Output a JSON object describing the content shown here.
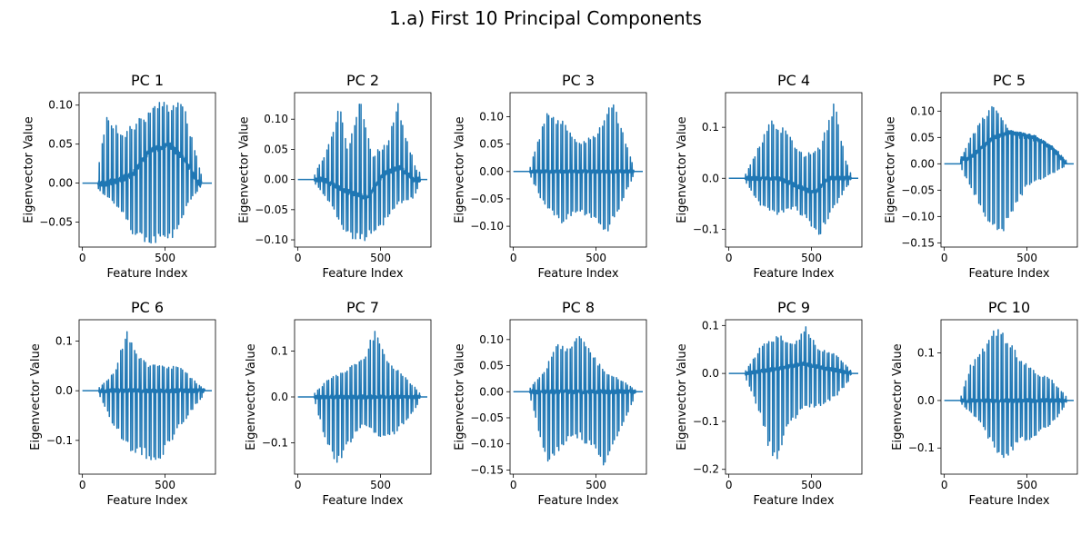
{
  "figure": {
    "title": "1.a) First 10 Principal Components",
    "line_color": "#1f77b4"
  },
  "chart_data": [
    {
      "type": "line",
      "title": "PC 1",
      "xlabel": "Feature Index",
      "ylabel": "Eigenvector Value",
      "xlim": [
        -20,
        805
      ],
      "ylim": [
        -0.082,
        0.116
      ],
      "xticks": [
        0,
        500
      ],
      "yticks": [
        -0.05,
        0,
        0.05,
        0.1
      ],
      "ytick_labels": [
        "−0.05",
        "0.00",
        "0.05",
        "0.10"
      ],
      "signal": {
        "active": [
          95,
          720
        ],
        "pos_max": 0.108,
        "neg_min": -0.078,
        "pos_profile": [
          [
            95,
            0.2
          ],
          [
            150,
            0.8
          ],
          [
            250,
            0.6
          ],
          [
            350,
            0.8
          ],
          [
            450,
            0.95
          ],
          [
            550,
            1.0
          ],
          [
            620,
            0.9
          ],
          [
            680,
            0.4
          ],
          [
            720,
            0.1
          ]
        ],
        "neg_profile": [
          [
            95,
            0.1
          ],
          [
            250,
            0.5
          ],
          [
            300,
            0.9
          ],
          [
            420,
            1.0
          ],
          [
            550,
            0.9
          ],
          [
            650,
            0.3
          ],
          [
            720,
            0.05
          ]
        ],
        "base_profile": [
          [
            150,
            0
          ],
          [
            300,
            0.01
          ],
          [
            400,
            0.04
          ],
          [
            520,
            0.05
          ],
          [
            620,
            0.03
          ],
          [
            700,
            0
          ]
        ],
        "noise": 0.004,
        "seed": 11
      }
    },
    {
      "type": "line",
      "title": "PC 2",
      "xlabel": "Feature Index",
      "ylabel": "Eigenvector Value",
      "xlim": [
        -20,
        805
      ],
      "ylim": [
        -0.112,
        0.144
      ],
      "xticks": [
        0,
        500
      ],
      "yticks": [
        -0.1,
        -0.05,
        0,
        0.05,
        0.1
      ],
      "ytick_labels": [
        "−0.10",
        "−0.05",
        "0.00",
        "0.05",
        "0.10"
      ],
      "signal": {
        "active": [
          100,
          740
        ],
        "pos_max": 0.134,
        "neg_min": -0.104,
        "pos_profile": [
          [
            100,
            0.05
          ],
          [
            200,
            0.5
          ],
          [
            250,
            0.95
          ],
          [
            300,
            0.4
          ],
          [
            380,
            1.0
          ],
          [
            450,
            0.3
          ],
          [
            550,
            0.5
          ],
          [
            600,
            1.0
          ],
          [
            650,
            0.6
          ],
          [
            720,
            0.1
          ]
        ],
        "neg_profile": [
          [
            100,
            0.05
          ],
          [
            200,
            0.4
          ],
          [
            300,
            0.95
          ],
          [
            400,
            1.0
          ],
          [
            500,
            0.8
          ],
          [
            600,
            0.4
          ],
          [
            700,
            0.3
          ],
          [
            740,
            0.05
          ]
        ],
        "base_profile": [
          [
            150,
            0
          ],
          [
            300,
            -0.02
          ],
          [
            420,
            -0.03
          ],
          [
            520,
            0.01
          ],
          [
            620,
            0.02
          ],
          [
            700,
            0
          ]
        ],
        "noise": 0.004,
        "seed": 23
      }
    },
    {
      "type": "line",
      "title": "PC 3",
      "xlabel": "Feature Index",
      "ylabel": "Eigenvector Value",
      "xlim": [
        -20,
        805
      ],
      "ylim": [
        -0.138,
        0.144
      ],
      "xticks": [
        0,
        500
      ],
      "yticks": [
        -0.1,
        -0.05,
        0,
        0.05,
        0.1
      ],
      "ytick_labels": [
        "−0.10",
        "−0.05",
        "0.00",
        "0.05",
        "0.10"
      ],
      "signal": {
        "active": [
          100,
          730
        ],
        "pos_max": 0.134,
        "neg_min": -0.122,
        "pos_profile": [
          [
            100,
            0.05
          ],
          [
            200,
            0.8
          ],
          [
            300,
            0.7
          ],
          [
            400,
            0.4
          ],
          [
            500,
            0.5
          ],
          [
            600,
            1.0
          ],
          [
            680,
            0.4
          ],
          [
            730,
            0.05
          ]
        ],
        "neg_profile": [
          [
            100,
            0.05
          ],
          [
            200,
            0.6
          ],
          [
            300,
            0.8
          ],
          [
            400,
            0.6
          ],
          [
            500,
            0.8
          ],
          [
            560,
            1.0
          ],
          [
            650,
            0.5
          ],
          [
            730,
            0.05
          ]
        ],
        "base_profile": [
          [
            100,
            0
          ],
          [
            730,
            0
          ]
        ],
        "noise": 0.003,
        "seed": 37
      }
    },
    {
      "type": "line",
      "title": "PC 4",
      "xlabel": "Feature Index",
      "ylabel": "Eigenvector Value",
      "xlim": [
        -20,
        805
      ],
      "ylim": [
        -0.135,
        0.168
      ],
      "xticks": [
        0,
        500
      ],
      "yticks": [
        -0.1,
        0,
        0.1
      ],
      "ytick_labels": [
        "−0.1",
        "0.0",
        "0.1"
      ],
      "signal": {
        "active": [
          100,
          740
        ],
        "pos_max": 0.153,
        "neg_min": -0.12,
        "pos_profile": [
          [
            100,
            0.05
          ],
          [
            200,
            0.5
          ],
          [
            250,
            0.8
          ],
          [
            350,
            0.6
          ],
          [
            450,
            0.3
          ],
          [
            550,
            0.4
          ],
          [
            640,
            1.0
          ],
          [
            700,
            0.3
          ],
          [
            740,
            0.05
          ]
        ],
        "neg_profile": [
          [
            100,
            0.05
          ],
          [
            200,
            0.5
          ],
          [
            300,
            0.6
          ],
          [
            400,
            0.5
          ],
          [
            500,
            0.8
          ],
          [
            540,
            1.0
          ],
          [
            620,
            0.6
          ],
          [
            700,
            0.2
          ],
          [
            740,
            0.05
          ]
        ],
        "base_profile": [
          [
            300,
            0
          ],
          [
            450,
            -0.02
          ],
          [
            520,
            -0.03
          ],
          [
            600,
            0
          ]
        ],
        "noise": 0.004,
        "seed": 41
      }
    },
    {
      "type": "line",
      "title": "PC 5",
      "xlabel": "Feature Index",
      "ylabel": "Eigenvector Value",
      "xlim": [
        -20,
        805
      ],
      "ylim": [
        -0.158,
        0.135
      ],
      "xticks": [
        0,
        500
      ],
      "yticks": [
        -0.15,
        -0.1,
        -0.05,
        0,
        0.05,
        0.1
      ],
      "ytick_labels": [
        "−0.15",
        "−0.10",
        "−0.05",
        "0.00",
        "0.05",
        "0.10"
      ],
      "signal": {
        "active": [
          100,
          740
        ],
        "pos_max": 0.125,
        "neg_min": -0.145,
        "pos_profile": [
          [
            100,
            0.1
          ],
          [
            200,
            0.6
          ],
          [
            300,
            1.0
          ],
          [
            380,
            0.6
          ],
          [
            450,
            0.4
          ],
          [
            550,
            0.4
          ],
          [
            650,
            0.3
          ],
          [
            740,
            0.05
          ]
        ],
        "neg_profile": [
          [
            100,
            0.05
          ],
          [
            200,
            0.5
          ],
          [
            300,
            0.9
          ],
          [
            340,
            1.0
          ],
          [
            400,
            0.7
          ],
          [
            500,
            0.3
          ],
          [
            600,
            0.2
          ],
          [
            740,
            0.02
          ]
        ],
        "base_profile": [
          [
            150,
            0.01
          ],
          [
            300,
            0.05
          ],
          [
            400,
            0.06
          ],
          [
            550,
            0.05
          ],
          [
            650,
            0.03
          ],
          [
            740,
            0
          ]
        ],
        "noise": 0.004,
        "seed": 53
      }
    },
    {
      "type": "line",
      "title": "PC 6",
      "xlabel": "Feature Index",
      "ylabel": "Eigenvector Value",
      "xlim": [
        -20,
        805
      ],
      "ylim": [
        -0.168,
        0.143
      ],
      "xticks": [
        0,
        500
      ],
      "yticks": [
        -0.1,
        0,
        0.1
      ],
      "ytick_labels": [
        "−0.1",
        "0.0",
        "0.1"
      ],
      "signal": {
        "active": [
          100,
          740
        ],
        "pos_max": 0.131,
        "neg_min": -0.158,
        "pos_profile": [
          [
            100,
            0.05
          ],
          [
            200,
            0.3
          ],
          [
            270,
            1.0
          ],
          [
            320,
            0.6
          ],
          [
            400,
            0.4
          ],
          [
            500,
            0.4
          ],
          [
            600,
            0.35
          ],
          [
            700,
            0.1
          ],
          [
            740,
            0.02
          ]
        ],
        "neg_profile": [
          [
            100,
            0.05
          ],
          [
            200,
            0.5
          ],
          [
            300,
            0.8
          ],
          [
            380,
            0.85
          ],
          [
            430,
            1.0
          ],
          [
            500,
            0.8
          ],
          [
            580,
            0.5
          ],
          [
            680,
            0.2
          ],
          [
            740,
            0.05
          ]
        ],
        "base_profile": [
          [
            100,
            0
          ],
          [
            740,
            0
          ]
        ],
        "noise": 0.004,
        "seed": 67
      }
    },
    {
      "type": "line",
      "title": "PC 7",
      "xlabel": "Feature Index",
      "ylabel": "Eigenvector Value",
      "xlim": [
        -20,
        805
      ],
      "ylim": [
        -0.168,
        0.168
      ],
      "xticks": [
        0,
        500
      ],
      "yticks": [
        -0.1,
        0,
        0.1
      ],
      "ytick_labels": [
        "−0.1",
        "0.0",
        "0.1"
      ],
      "signal": {
        "active": [
          100,
          740
        ],
        "pos_max": 0.151,
        "neg_min": -0.157,
        "pos_profile": [
          [
            100,
            0.05
          ],
          [
            200,
            0.3
          ],
          [
            300,
            0.4
          ],
          [
            400,
            0.6
          ],
          [
            470,
            1.0
          ],
          [
            550,
            0.5
          ],
          [
            650,
            0.3
          ],
          [
            740,
            0.05
          ]
        ],
        "neg_profile": [
          [
            100,
            0.05
          ],
          [
            180,
            0.7
          ],
          [
            230,
            1.0
          ],
          [
            300,
            0.7
          ],
          [
            400,
            0.4
          ],
          [
            500,
            0.6
          ],
          [
            600,
            0.5
          ],
          [
            700,
            0.2
          ],
          [
            740,
            0.05
          ]
        ],
        "base_profile": [
          [
            100,
            0
          ],
          [
            740,
            0
          ]
        ],
        "noise": 0.004,
        "seed": 79
      }
    },
    {
      "type": "line",
      "title": "PC 8",
      "xlabel": "Feature Index",
      "ylabel": "Eigenvector Value",
      "xlim": [
        -20,
        805
      ],
      "ylim": [
        -0.158,
        0.138
      ],
      "xticks": [
        0,
        500
      ],
      "yticks": [
        -0.15,
        -0.1,
        -0.05,
        0,
        0.05,
        0.1
      ],
      "ytick_labels": [
        "−0.15",
        "−0.10",
        "−0.05",
        "0.00",
        "0.05",
        "0.10"
      ],
      "signal": {
        "active": [
          100,
          740
        ],
        "pos_max": 0.12,
        "neg_min": -0.148,
        "pos_profile": [
          [
            100,
            0.05
          ],
          [
            200,
            0.4
          ],
          [
            260,
            0.8
          ],
          [
            330,
            0.7
          ],
          [
            400,
            1.0
          ],
          [
            480,
            0.6
          ],
          [
            560,
            0.3
          ],
          [
            650,
            0.2
          ],
          [
            740,
            0.02
          ]
        ],
        "neg_profile": [
          [
            100,
            0.05
          ],
          [
            160,
            0.6
          ],
          [
            200,
            0.95
          ],
          [
            300,
            0.7
          ],
          [
            400,
            0.6
          ],
          [
            500,
            0.8
          ],
          [
            560,
            1.0
          ],
          [
            650,
            0.5
          ],
          [
            740,
            0.05
          ]
        ],
        "base_profile": [
          [
            100,
            0
          ],
          [
            740,
            0
          ]
        ],
        "noise": 0.004,
        "seed": 89
      }
    },
    {
      "type": "line",
      "title": "PC 9",
      "xlabel": "Feature Index",
      "ylabel": "Eigenvector Value",
      "xlim": [
        -20,
        805
      ],
      "ylim": [
        -0.21,
        0.112
      ],
      "xticks": [
        0,
        500
      ],
      "yticks": [
        -0.2,
        -0.1,
        0,
        0.1
      ],
      "ytick_labels": [
        "−0.2",
        "−0.1",
        "0.0",
        "0.1"
      ],
      "signal": {
        "active": [
          100,
          740
        ],
        "pos_max": 0.102,
        "neg_min": -0.195,
        "pos_profile": [
          [
            100,
            0.05
          ],
          [
            200,
            0.6
          ],
          [
            300,
            0.8
          ],
          [
            400,
            0.6
          ],
          [
            460,
            1.0
          ],
          [
            550,
            0.5
          ],
          [
            650,
            0.4
          ],
          [
            740,
            0.05
          ]
        ],
        "neg_profile": [
          [
            100,
            0.05
          ],
          [
            180,
            0.4
          ],
          [
            240,
            0.8
          ],
          [
            280,
            1.0
          ],
          [
            350,
            0.6
          ],
          [
            450,
            0.4
          ],
          [
            550,
            0.35
          ],
          [
            650,
            0.25
          ],
          [
            740,
            0.05
          ]
        ],
        "base_profile": [
          [
            100,
            0
          ],
          [
            300,
            0.01
          ],
          [
            450,
            0.02
          ],
          [
            600,
            0.01
          ],
          [
            740,
            0
          ]
        ],
        "noise": 0.004,
        "seed": 97
      }
    },
    {
      "type": "line",
      "title": "PC 10",
      "xlabel": "Feature Index",
      "ylabel": "Eigenvector Value",
      "xlim": [
        -20,
        805
      ],
      "ylim": [
        -0.155,
        0.17
      ],
      "xticks": [
        0,
        500
      ],
      "yticks": [
        -0.1,
        0,
        0.1
      ],
      "ytick_labels": [
        "−0.1",
        "0.0",
        "0.1"
      ],
      "signal": {
        "active": [
          100,
          740
        ],
        "pos_max": 0.154,
        "neg_min": -0.13,
        "pos_profile": [
          [
            100,
            0.05
          ],
          [
            160,
            0.5
          ],
          [
            260,
            0.8
          ],
          [
            300,
            1.0
          ],
          [
            380,
            0.9
          ],
          [
            450,
            0.6
          ],
          [
            550,
            0.4
          ],
          [
            650,
            0.3
          ],
          [
            740,
            0.05
          ]
        ],
        "neg_profile": [
          [
            100,
            0.05
          ],
          [
            200,
            0.3
          ],
          [
            300,
            0.8
          ],
          [
            350,
            1.0
          ],
          [
            450,
            0.7
          ],
          [
            550,
            0.6
          ],
          [
            650,
            0.4
          ],
          [
            740,
            0.05
          ]
        ],
        "base_profile": [
          [
            100,
            0
          ],
          [
            740,
            0
          ]
        ],
        "noise": 0.004,
        "seed": 101
      }
    }
  ]
}
